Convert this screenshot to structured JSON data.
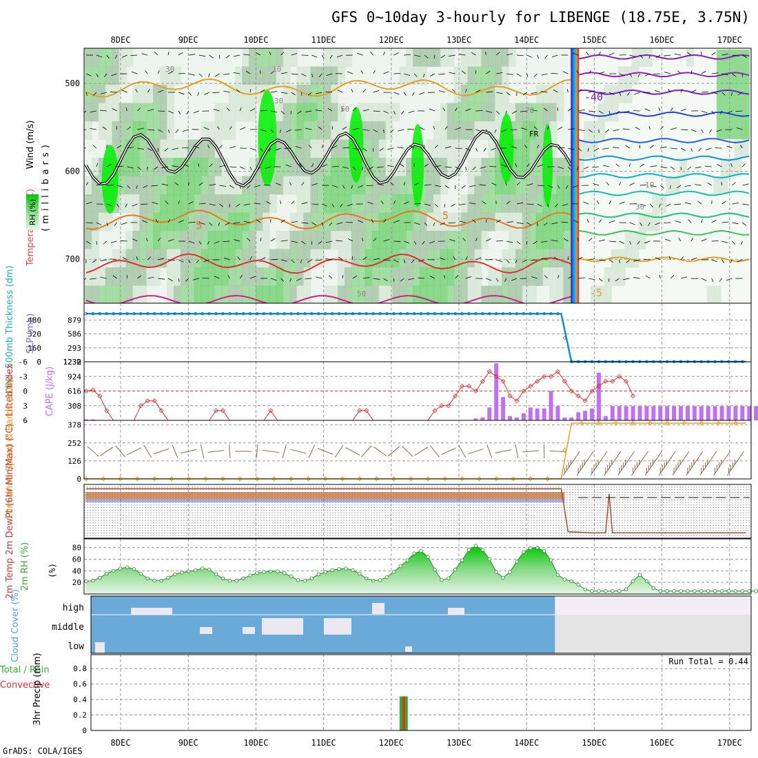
{
  "header": {
    "title": "GFS 0~10day 3-hourly for LIBENGE (18.75E, 3.75N)",
    "credit": "GrADS: COLA/IGES"
  },
  "colors": {
    "rh_light": "#d8e8d8",
    "rh_mid": "#a8c8a8",
    "rh_green": "#78d278",
    "rh_bright": "#00f000",
    "temp_warm": "#e03030",
    "temp_orange": "#e87820",
    "temp_gold": "#e0a020",
    "temp_cold": "#8020c0",
    "freezing_line": "#000000",
    "thickness": "#1090c0",
    "cape_bar": "#c070f0",
    "lifted_index": "#e03030",
    "wind_speed": "#e8a020",
    "wind_barb": "#8a6a40",
    "rh2m": "#30b030",
    "cloud": "#6aaad8",
    "precip_total": "#30b030",
    "precip_conv": "#e03030"
  },
  "chart_data": [
    {
      "id": "upper-air",
      "type": "heatmap",
      "ylabel_parts": [
        "Wind (m/s)",
        "Temperature (°C)",
        "(millibars)"
      ],
      "legend_label": "RH (%)",
      "y_ticks": [
        "500",
        "600",
        "700"
      ],
      "ylim": [
        460,
        750
      ],
      "date_ticks": [
        "8DEC",
        "9DEC",
        "10DEC",
        "11DEC",
        "12DEC",
        "13DEC",
        "14DEC",
        "15DEC",
        "16DEC",
        "17DEC"
      ],
      "contour_labels": [
        "30",
        "10",
        "30",
        "50",
        "70",
        "FR",
        "5",
        "5",
        "50",
        "-40",
        "10",
        "30",
        "-5"
      ],
      "temperature_levels_left": [
        {
          "name": "~-5 (gold)",
          "mb": 505
        },
        {
          "name": "5",
          "mb": 655
        },
        {
          "name": "warm",
          "mb": 705
        }
      ],
      "temperature_levels_right": [
        {
          "name": "-40",
          "mb": 470
        },
        {
          "name": "-40b",
          "mb": 490
        },
        {
          "name": "-30",
          "mb": 510
        },
        {
          "name": "-25",
          "mb": 535
        },
        {
          "name": "-20",
          "mb": 565
        },
        {
          "name": "-15",
          "mb": 585
        },
        {
          "name": "-12",
          "mb": 605
        },
        {
          "name": "-10",
          "mb": 625
        },
        {
          "name": "-8",
          "mb": 650
        },
        {
          "name": "-6",
          "mb": 670
        },
        {
          "name": "-5",
          "mb": 700
        }
      ]
    },
    {
      "id": "thickness-slp",
      "type": "line",
      "ylabel_left": "1000~500mb Thickness (dm)",
      "ylabel_right": "SLP (mb)",
      "y_ticks_left": [
        "480",
        "320",
        "160",
        "0"
      ],
      "y_ticks_right": [
        "879",
        "586",
        "293",
        "0"
      ],
      "top_label": "1232",
      "series": [
        {
          "name": "SLP (mb)",
          "x": [
            0,
            69.5,
            71,
            96.5
          ],
          "y": [
            1012,
            1012,
            2,
            2
          ]
        }
      ]
    },
    {
      "id": "cape-li",
      "type": "bar",
      "ylabel_left": "Lifted Index",
      "ylabel_right": "CAPE (J/kg)",
      "y_ticks_left": [
        "-6",
        "-3",
        "0",
        "3",
        "6"
      ],
      "y_ticks_right": [
        "1232",
        "924",
        "616",
        "308"
      ],
      "ylim": [
        0,
        1232
      ],
      "cape_values": [
        20,
        20,
        0,
        0,
        0,
        0,
        0,
        0,
        0,
        0,
        0,
        0,
        0,
        0,
        0,
        0,
        0,
        0,
        0,
        0,
        0,
        0,
        0,
        0,
        0,
        0,
        0,
        0,
        0,
        0,
        0,
        0,
        0,
        0,
        0,
        0,
        0,
        0,
        0,
        0,
        0,
        0,
        0,
        0,
        0,
        0,
        0,
        0,
        0,
        0,
        0,
        0,
        0,
        0,
        0,
        0,
        0,
        40,
        60,
        270,
        1200,
        490,
        90,
        60,
        150,
        270,
        250,
        250,
        620,
        300,
        60,
        60,
        170,
        200,
        250,
        1000,
        90,
        300,
        300,
        300,
        300,
        300,
        300,
        300,
        300,
        300,
        300,
        300,
        300,
        300,
        300,
        300,
        300,
        300,
        300,
        300,
        300,
        300,
        300
      ],
      "li_values": [
        0,
        -0.2,
        1,
        4,
        6,
        6,
        6,
        6,
        3,
        2,
        2,
        4,
        6,
        6,
        6,
        6,
        6,
        6,
        6,
        4,
        4,
        6,
        6,
        6,
        6,
        6,
        6,
        4,
        6,
        6,
        6,
        6,
        6,
        6,
        6,
        6,
        6,
        6,
        6,
        6,
        4,
        4,
        6,
        6,
        6,
        6,
        6,
        6,
        6,
        6,
        6,
        4,
        3,
        3,
        1,
        -1,
        -1,
        0,
        -2,
        -4,
        -3,
        -2,
        1,
        2,
        0,
        -1,
        -2,
        -3,
        -3,
        -4,
        -2,
        0,
        1,
        2,
        0,
        -1,
        -2,
        -2,
        -3,
        -2,
        1,
        -3,
        0,
        0,
        0,
        0,
        0,
        0,
        0,
        0,
        0,
        0,
        0,
        0,
        0,
        0,
        0,
        0,
        0,
        0,
        0
      ]
    },
    {
      "id": "wind10m",
      "type": "line",
      "ylabel": "10m Wind Speed & Barbs (m/s)",
      "y_ticks": [
        "378",
        "252",
        "126",
        "0"
      ],
      "ylim": [
        0,
        410
      ],
      "series": [
        {
          "name": "10m Wind Speed",
          "x": [
            0,
            69.5,
            71,
            96.5
          ],
          "y": [
            1,
            1,
            390,
            390
          ]
        }
      ]
    },
    {
      "id": "temp2m",
      "type": "line",
      "ylabel": "2m Temp 2m DewPt (6hr Min/Max) (°C)",
      "series": [
        {
          "name": "2m Temp",
          "x": [
            0,
            69.5,
            70.5,
            74,
            76,
            76.5,
            77,
            77.5,
            78,
            96.5
          ],
          "y": [
            0.92,
            0.92,
            0.12,
            0.1,
            0.1,
            0.82,
            0.1,
            0.1,
            0.1,
            0.1
          ]
        }
      ]
    },
    {
      "id": "rh2m",
      "type": "area",
      "ylabel": "2m RH (%)",
      "y_ticks": [
        "80",
        "60",
        "40",
        "20"
      ],
      "ylim": [
        0,
        95
      ],
      "x_step_hours": 3,
      "values": [
        22,
        23,
        28,
        35,
        40,
        44,
        46,
        43,
        35,
        27,
        23,
        23,
        28,
        34,
        37,
        39,
        41,
        44,
        42,
        34,
        27,
        23,
        23,
        27,
        32,
        36,
        38,
        39,
        39,
        36,
        30,
        24,
        23,
        27,
        34,
        38,
        41,
        43,
        44,
        41,
        35,
        27,
        23,
        24,
        29,
        38,
        48,
        58,
        70,
        74,
        64,
        42,
        24,
        27,
        42,
        58,
        76,
        83,
        76,
        60,
        38,
        28,
        38,
        56,
        72,
        79,
        80,
        74,
        58,
        33,
        25,
        22,
        16,
        8,
        5,
        5,
        5,
        5,
        5,
        8,
        22,
        33,
        22,
        10,
        5,
        5,
        5,
        5,
        5,
        5,
        5,
        5,
        5,
        5,
        5,
        5,
        5,
        5,
        5
      ]
    },
    {
      "id": "cloud",
      "type": "heatmap",
      "ylabel": "Cloud Cover (%)",
      "row_labels": [
        "high",
        "middle",
        "low"
      ]
    },
    {
      "id": "precip",
      "type": "bar",
      "ylabel_parts": [
        "Total / Rain",
        "Convective",
        "3hr Precip (mm)"
      ],
      "y_ticks": [
        "0.8",
        "0.6",
        "0.4",
        "0.2",
        "0"
      ],
      "ylim": [
        0,
        0.98
      ],
      "run_total_label": "Run Total = 0.44",
      "bars": [
        {
          "date": "12DEC",
          "total": 0.44,
          "convective": 0.44
        }
      ]
    }
  ]
}
